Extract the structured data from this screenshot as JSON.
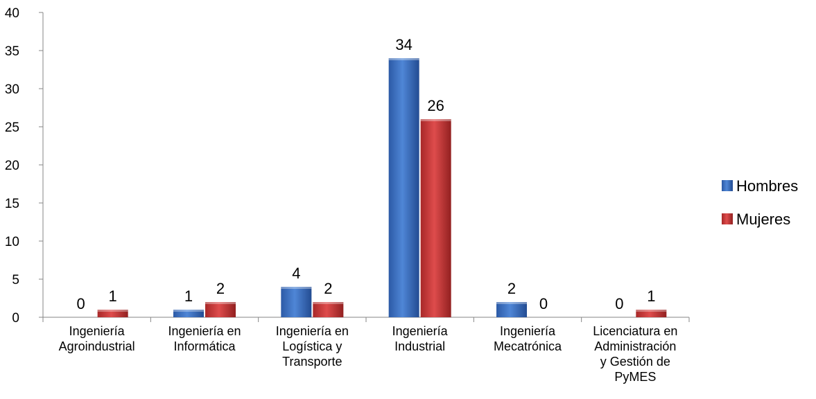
{
  "chart_data": {
    "type": "bar",
    "categories": [
      [
        "Ingeniería",
        "Agroindustrial"
      ],
      [
        "Ingeniería en",
        "Informática"
      ],
      [
        "Ingeniería en",
        "Logística y",
        "Transporte"
      ],
      [
        "Ingeniería",
        "Industrial"
      ],
      [
        "Ingeniería",
        "Mecatrónica"
      ],
      [
        "Licenciatura en",
        "Administración",
        "y Gestión de",
        "PyMES"
      ]
    ],
    "series": [
      {
        "name": "Hombres",
        "values": [
          0,
          1,
          4,
          34,
          2,
          0
        ],
        "color": "#3a6fc4"
      },
      {
        "name": "Mujeres",
        "values": [
          1,
          2,
          2,
          26,
          0,
          1
        ],
        "color": "#c93a3a"
      }
    ],
    "yticks": [
      "0",
      "5",
      "10",
      "15",
      "20",
      "25",
      "30",
      "35",
      "40"
    ],
    "ylim": [
      0,
      40
    ],
    "grid": false,
    "legend_position": "right"
  }
}
